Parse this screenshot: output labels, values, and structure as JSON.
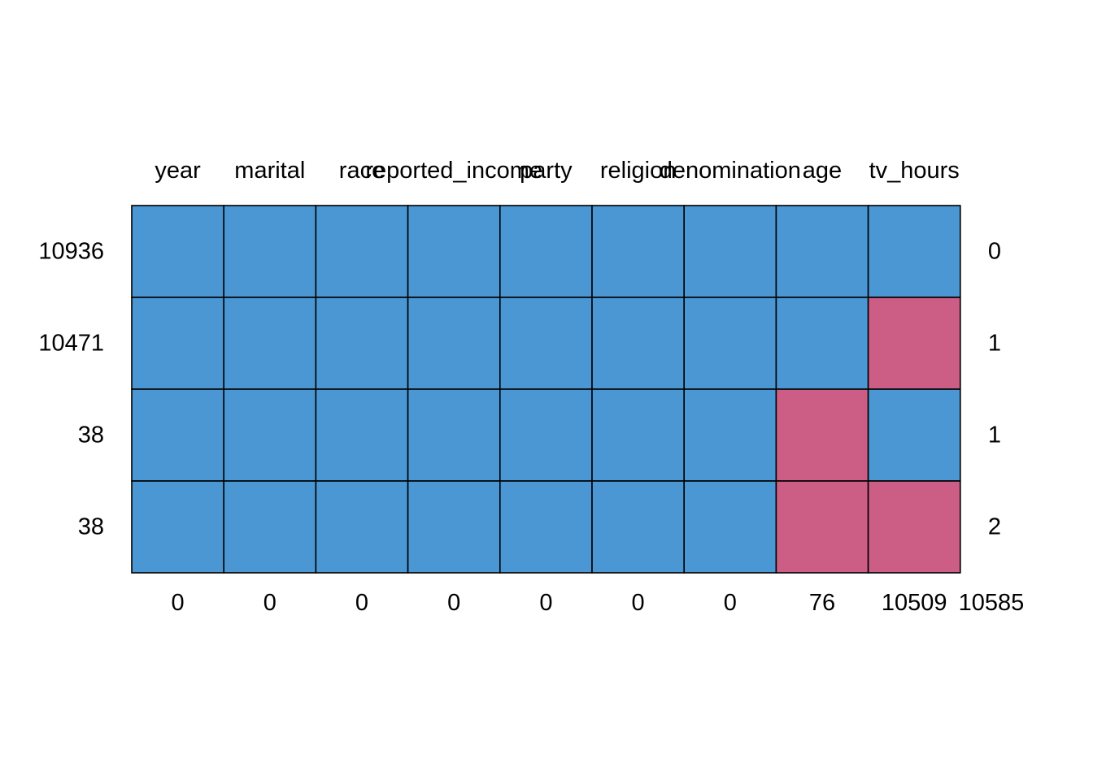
{
  "chart_data": {
    "type": "heatmap",
    "columns": [
      "year",
      "marital",
      "race",
      "reported_income",
      "party",
      "religion",
      "denomination",
      "age",
      "tv_hours"
    ],
    "rows": [
      {
        "count": "10936",
        "pattern": [
          1,
          1,
          1,
          1,
          1,
          1,
          1,
          1,
          1
        ],
        "missing": "0"
      },
      {
        "count": "10471",
        "pattern": [
          1,
          1,
          1,
          1,
          1,
          1,
          1,
          1,
          0
        ],
        "missing": "1"
      },
      {
        "count": "38",
        "pattern": [
          1,
          1,
          1,
          1,
          1,
          1,
          1,
          0,
          1
        ],
        "missing": "1"
      },
      {
        "count": "38",
        "pattern": [
          1,
          1,
          1,
          1,
          1,
          1,
          1,
          0,
          0
        ],
        "missing": "2"
      }
    ],
    "column_missing_totals": [
      "0",
      "0",
      "0",
      "0",
      "0",
      "0",
      "0",
      "76",
      "10509"
    ],
    "grand_total_missing": "10585",
    "colors": {
      "observed": "#4b97d4",
      "missing": "#cc5d84",
      "border": "#000000"
    }
  }
}
